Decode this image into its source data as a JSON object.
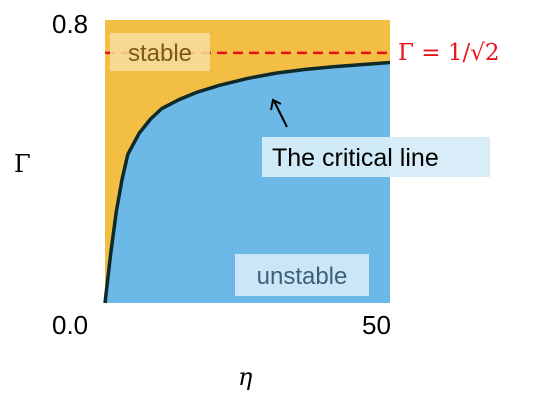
{
  "chart_data": {
    "type": "area",
    "xlim": [
      0,
      50
    ],
    "ylim": [
      0,
      0.8
    ],
    "x_ticks": [
      "0.0",
      "50"
    ],
    "y_ticks": [
      "0.8"
    ],
    "xlabel": "η",
    "ylabel": "Γ",
    "critical_line": {
      "x": [
        0,
        1,
        2,
        3,
        4,
        6,
        8,
        10,
        13,
        16,
        20,
        25,
        30,
        35,
        40,
        45,
        50
      ],
      "y": [
        0.0,
        0.14,
        0.26,
        0.35,
        0.42,
        0.48,
        0.52,
        0.55,
        0.575,
        0.595,
        0.615,
        0.635,
        0.65,
        0.66,
        0.668,
        0.674,
        0.68
      ]
    },
    "reference_line": {
      "y": 0.7071,
      "label": "Γ = 1/√2",
      "style": "dashed",
      "color": "#e8141a"
    },
    "regions": [
      {
        "label": "stable",
        "color": "#f2be43",
        "text_color": "#7a5a14"
      },
      {
        "label": "unstable",
        "color": "#6cb8e6",
        "text_color": "#3e6077"
      }
    ],
    "annotation": {
      "text": "The critical line"
    }
  }
}
